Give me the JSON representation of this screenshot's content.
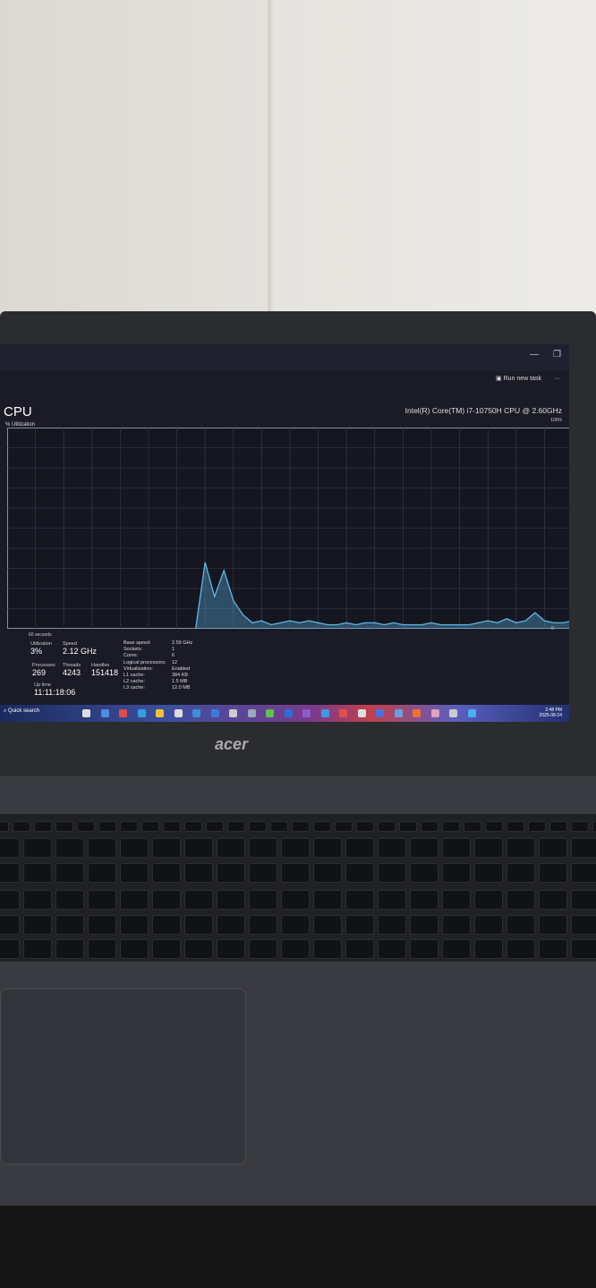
{
  "window": {
    "run_new_task": "Run new task",
    "more": "···",
    "minimize": "—",
    "maximize": "❐",
    "close": "✕"
  },
  "cpu": {
    "title": "CPU",
    "util_label": "% Utilization",
    "model": "Intel(R) Core(TM) i7-10750H CPU @ 2.60GHz",
    "max_label": "100%",
    "min_label": "0",
    "time_label": "60 seconds"
  },
  "stats": {
    "utilization_label": "Utilization",
    "utilization": "3%",
    "speed_label": "Speed",
    "speed": "2.12 GHz",
    "processes_label": "Processes",
    "processes": "269",
    "threads_label": "Threads",
    "threads": "4243",
    "handles_label": "Handles",
    "handles": "151418",
    "uptime_label": "Up time",
    "uptime": "11:11:18:06"
  },
  "specs": [
    {
      "k": "Base speed:",
      "v": "2.59 GHz"
    },
    {
      "k": "Sockets:",
      "v": "1"
    },
    {
      "k": "Cores:",
      "v": "6"
    },
    {
      "k": "Logical processors:",
      "v": "12"
    },
    {
      "k": "Virtualization:",
      "v": "Enabled"
    },
    {
      "k": "L1 cache:",
      "v": "384 KB"
    },
    {
      "k": "L2 cache:",
      "v": "1.5 MB"
    },
    {
      "k": "L3 cache:",
      "v": "12.0 MB"
    }
  ],
  "taskbar": {
    "search": "Quick search",
    "time": "2:48 PM",
    "date": "2025-08-24",
    "icon_colors": [
      "#ddd",
      "#4a8fe0",
      "#e24a4a",
      "#33a0e0",
      "#f2c230",
      "#ddd",
      "#3a8fd8",
      "#3b7be0",
      "#ccc",
      "#9ab",
      "#5bc24a",
      "#2b6fd6",
      "#8a5cd0",
      "#3c9ce8",
      "#e05050",
      "#ddd",
      "#4a70e0",
      "#6aa0e0",
      "#f07030",
      "#e0a0c0",
      "#ccc",
      "#4ab0f0"
    ]
  },
  "laptop": {
    "brand": "acer"
  },
  "chart_data": {
    "type": "area",
    "title": "CPU",
    "ylabel": "% Utilization",
    "xlabel": "60 seconds",
    "ylim": [
      0,
      100
    ],
    "xlim": [
      60,
      0
    ],
    "grid": true,
    "color": "#5fb8e8",
    "x_unit": "seconds ago",
    "values": [
      null,
      null,
      null,
      null,
      null,
      null,
      null,
      null,
      null,
      null,
      null,
      null,
      null,
      null,
      null,
      null,
      null,
      null,
      null,
      null,
      0,
      33,
      16,
      29,
      14,
      7,
      3,
      4,
      2,
      3,
      4,
      3,
      4,
      3,
      2,
      2,
      3,
      2,
      3,
      3,
      2,
      3,
      2,
      2,
      2,
      3,
      2,
      2,
      2,
      2,
      3,
      4,
      3,
      5,
      3,
      4,
      8,
      4,
      3,
      3,
      4
    ]
  }
}
